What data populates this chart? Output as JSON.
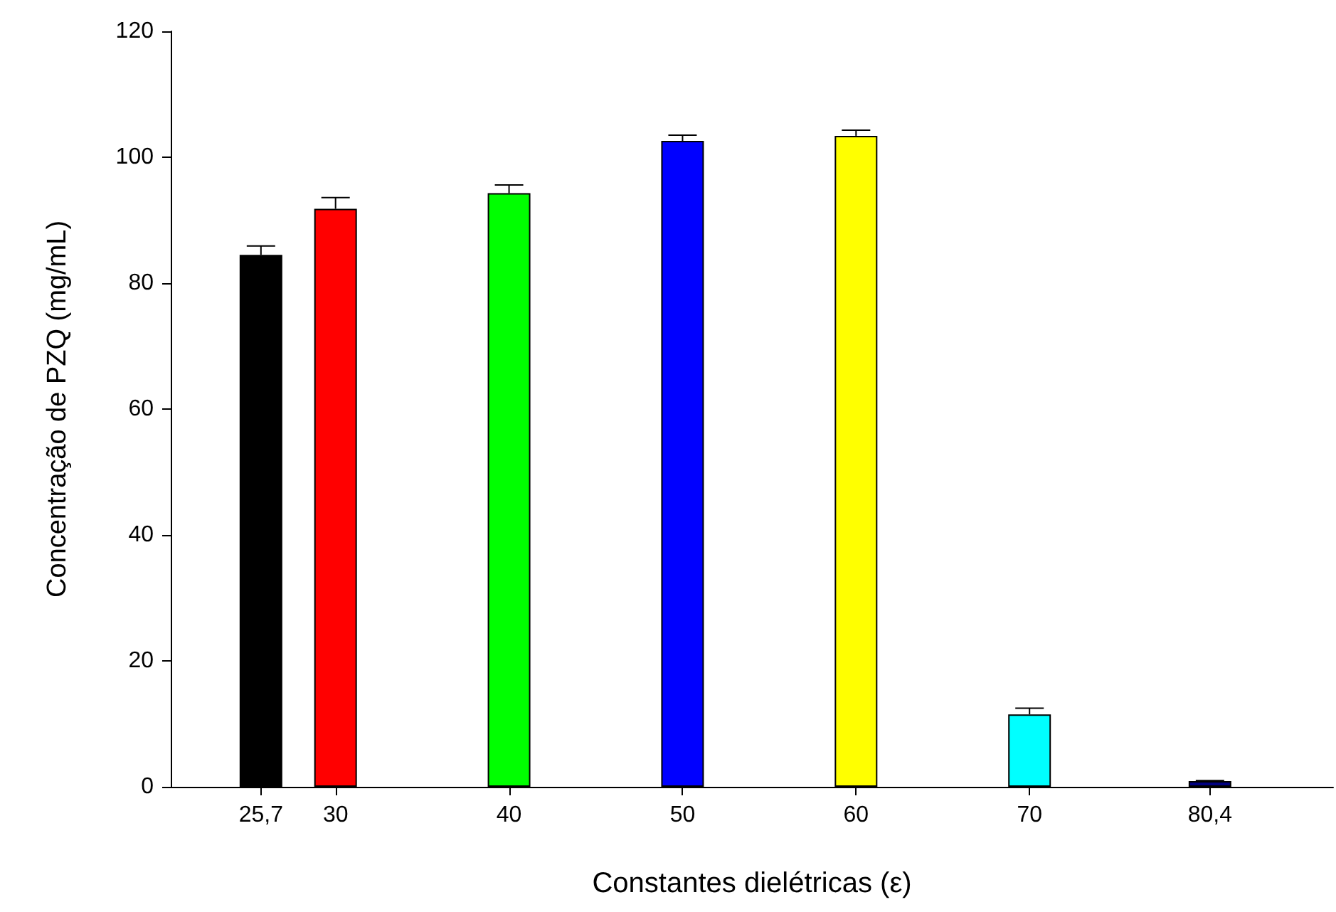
{
  "chart_data": {
    "type": "bar",
    "xlabel": "Constantes dielétricas (ε)",
    "ylabel": "Concentração de PZQ (mg/mL)",
    "x": [
      25.7,
      30,
      40,
      50,
      60,
      70,
      80.4
    ],
    "values": [
      84.5,
      91.8,
      94.3,
      102.6,
      103.4,
      11.5,
      0.9
    ],
    "errors": [
      1.4,
      1.8,
      1.3,
      0.9,
      0.9,
      1.0,
      0.1
    ],
    "colors": [
      "#000000",
      "#ff0000",
      "#00ff00",
      "#0000ff",
      "#ffff00",
      "#00ffff",
      "#000080"
    ],
    "xlim": [
      20.5,
      87.5
    ],
    "xticks": [
      {
        "value": 25.7,
        "label": "25,7"
      },
      30,
      40,
      50,
      60,
      70,
      {
        "value": 80.4,
        "label": "80,4"
      }
    ],
    "ylim": [
      0,
      120
    ],
    "yticks": [
      0,
      20,
      40,
      60,
      80,
      100,
      120
    ],
    "grid": false
  }
}
